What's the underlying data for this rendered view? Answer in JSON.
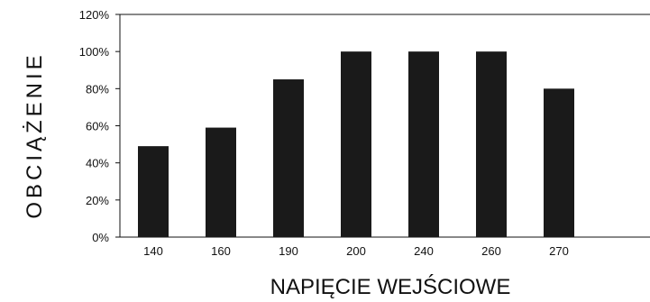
{
  "chart_data": {
    "type": "bar",
    "categories": [
      "140",
      "160",
      "190",
      "200",
      "240",
      "260",
      "270"
    ],
    "values": [
      49,
      59,
      85,
      100,
      100,
      100,
      80
    ],
    "xlabel": "NAPIĘCIE WEJŚCIOWE",
    "ylabel": "OBCIĄŻENIE",
    "ylim": [
      0,
      120
    ],
    "yticks": [
      "0%",
      "20%",
      "40%",
      "60%",
      "80%",
      "100%",
      "120%"
    ],
    "ytick_values": [
      0,
      20,
      40,
      60,
      80,
      100,
      120
    ],
    "bar_color": "#1a1a1a",
    "grid": false,
    "legend": "none"
  }
}
